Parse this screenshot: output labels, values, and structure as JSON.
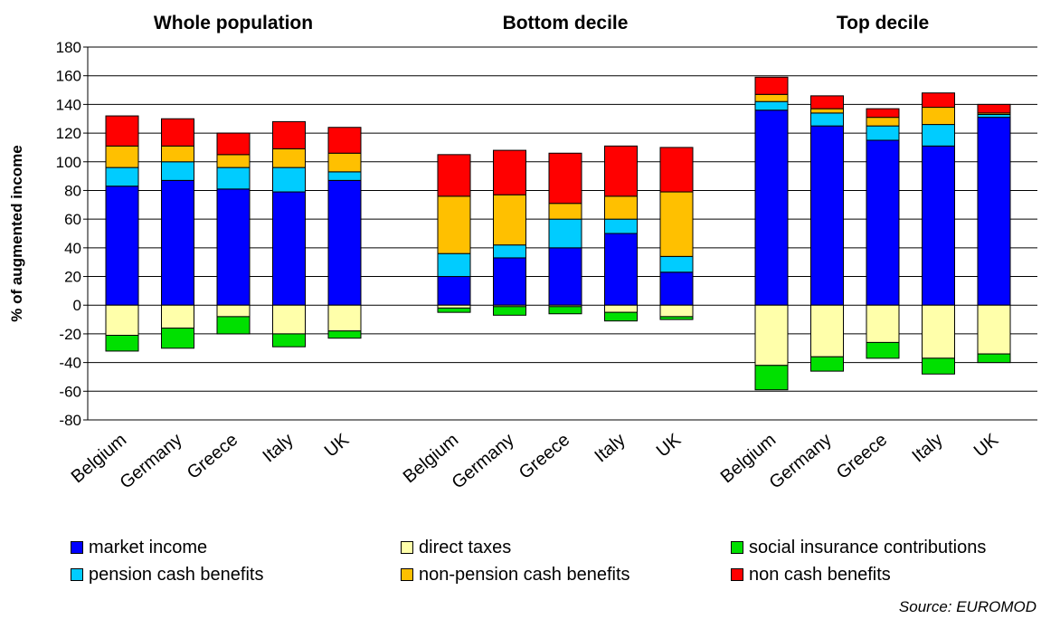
{
  "chart_data": {
    "type": "bar",
    "stacked": true,
    "ylabel": "% of augmented income",
    "ylim": [
      -80,
      180
    ],
    "yticks": [
      180,
      160,
      140,
      120,
      100,
      80,
      60,
      40,
      20,
      0,
      -20,
      -40,
      -60,
      -80
    ],
    "grid": "horizontal",
    "legend_position": "bottom",
    "source": "Source: EUROMOD",
    "components": [
      {
        "name": "market income",
        "color": "#0000FF"
      },
      {
        "name": "direct taxes",
        "color": "#FFFFAA"
      },
      {
        "name": "social insurance contributions",
        "color": "#00E000"
      },
      {
        "name": "pension cash benefits",
        "color": "#00CCFF"
      },
      {
        "name": "non-pension cash benefits",
        "color": "#FFC000"
      },
      {
        "name": "non cash benefits",
        "color": "#FF0000"
      }
    ],
    "panels": [
      {
        "title": "Whole population",
        "categories": [
          "Belgium",
          "Germany",
          "Greece",
          "Italy",
          "UK"
        ],
        "values": {
          "market income": [
            83,
            87,
            81,
            79,
            87
          ],
          "pension cash benefits": [
            13,
            13,
            15,
            17,
            6
          ],
          "non-pension cash benefits": [
            15,
            11,
            9,
            13,
            13
          ],
          "non cash benefits": [
            21,
            19,
            15,
            19,
            18
          ],
          "direct taxes": [
            -21,
            -16,
            -8,
            -20,
            -18
          ],
          "social insurance contributions": [
            -11,
            -14,
            -12,
            -9,
            -5
          ]
        }
      },
      {
        "title": "Bottom decile",
        "categories": [
          "Belgium",
          "Germany",
          "Greece",
          "Italy",
          "UK"
        ],
        "values": {
          "market income": [
            20,
            33,
            40,
            50,
            23
          ],
          "pension cash benefits": [
            16,
            9,
            20,
            10,
            11
          ],
          "non-pension cash benefits": [
            40,
            35,
            11,
            16,
            45
          ],
          "non cash benefits": [
            29,
            31,
            35,
            35,
            31
          ],
          "direct taxes": [
            -2,
            -1,
            -1,
            -5,
            -8
          ],
          "social insurance contributions": [
            -3,
            -6,
            -5,
            -6,
            -2
          ]
        }
      },
      {
        "title": "Top decile",
        "categories": [
          "Belgium",
          "Germany",
          "Greece",
          "Italy",
          "UK"
        ],
        "values": {
          "market income": [
            136,
            125,
            115,
            111,
            131
          ],
          "pension cash benefits": [
            6,
            9,
            10,
            15,
            2
          ],
          "non-pension cash benefits": [
            5,
            3,
            6,
            12,
            1
          ],
          "non cash benefits": [
            12,
            9,
            6,
            10,
            6
          ],
          "direct taxes": [
            -42,
            -36,
            -26,
            -37,
            -34
          ],
          "social insurance contributions": [
            -17,
            -10,
            -11,
            -11,
            -6
          ]
        }
      }
    ]
  }
}
